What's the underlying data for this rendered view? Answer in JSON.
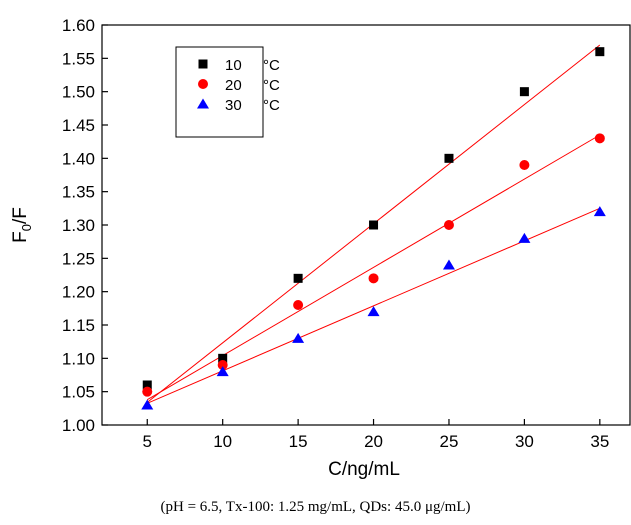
{
  "chart_data": {
    "type": "scatter",
    "xlabel": "C/ng/mL",
    "ylabel_main": "F",
    "ylabel_sub": "0",
    "ylabel_tail": "/F",
    "xlim": [
      2,
      37
    ],
    "ylim": [
      1.0,
      1.6
    ],
    "x_ticks": [
      5,
      10,
      15,
      20,
      25,
      30,
      35
    ],
    "y_ticks": [
      1.0,
      1.05,
      1.1,
      1.15,
      1.2,
      1.25,
      1.3,
      1.35,
      1.4,
      1.45,
      1.5,
      1.55,
      1.6
    ],
    "grid": false,
    "legend_placement": "top-left",
    "x": [
      5,
      10,
      15,
      20,
      25,
      30,
      35
    ],
    "series": [
      {
        "name": "10",
        "unit": "°C",
        "marker": "square",
        "color": "#000000",
        "values": [
          1.06,
          1.1,
          1.22,
          1.3,
          1.4,
          1.5,
          1.56
        ],
        "fit": [
          1.0339,
          1.57
        ]
      },
      {
        "name": "20",
        "unit": "°C",
        "marker": "circle",
        "color": "#ff0000",
        "values": [
          1.05,
          1.09,
          1.18,
          1.22,
          1.3,
          1.39,
          1.43
        ],
        "fit": [
          1.0379,
          1.435
        ]
      },
      {
        "name": "30",
        "unit": "°C",
        "marker": "triangle",
        "color": "#0000ff",
        "values": [
          1.03,
          1.08,
          1.13,
          1.17,
          1.24,
          1.28,
          1.32
        ],
        "fit": [
          1.0325,
          1.325
        ]
      }
    ],
    "fit_line_color": "#ff0000"
  },
  "caption": "(pH = 6.5, Tx-100: 1.25 mg/mL, QDs: 45.0 μg/mL)"
}
